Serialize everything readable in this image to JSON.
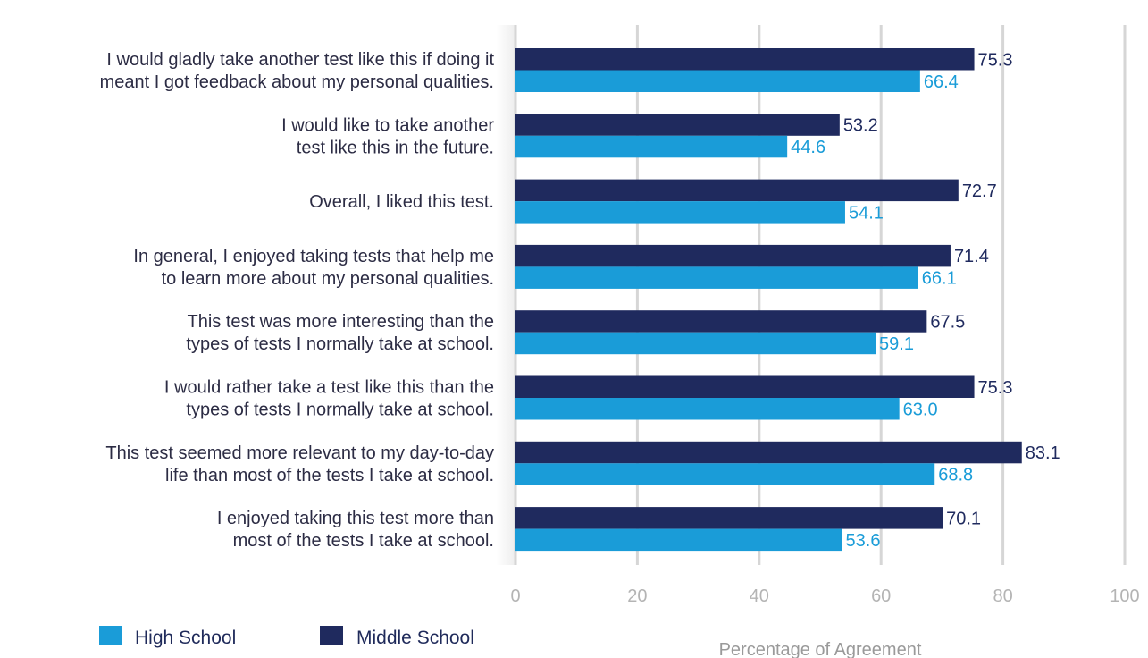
{
  "chart_data": {
    "type": "bar",
    "orientation": "horizontal",
    "title": "",
    "xlabel": "Percentage of Agreement",
    "ylabel": "",
    "xlim": [
      0,
      100
    ],
    "xticks": [
      0,
      20,
      40,
      60,
      80,
      100
    ],
    "grid": true,
    "legend_position": "bottom-left",
    "categories": [
      [
        "I would gladly take another test like this if doing it",
        "meant I got feedback about my personal qualities."
      ],
      [
        "I would like to take another",
        "test like this in the future."
      ],
      [
        "Overall, I liked this test."
      ],
      [
        "In general, I enjoyed taking tests that help me",
        "to learn more about my personal qualities."
      ],
      [
        "This test was more interesting than the",
        "types of tests I normally take at school."
      ],
      [
        "I would rather take a test like this than the",
        "types of tests I normally take at school."
      ],
      [
        "This test seemed more relevant to my day-to-day",
        "life than most of the tests I take at school."
      ],
      [
        "I enjoyed taking this test more than",
        "most of the tests I take at school."
      ]
    ],
    "series": [
      {
        "name": "Middle School",
        "color": "#1f2a5e",
        "label_color": "#1f2a5e",
        "values": [
          75.3,
          53.2,
          72.7,
          71.4,
          67.5,
          75.3,
          83.1,
          70.1
        ],
        "labels": [
          "75.3",
          "53.2",
          "72.7",
          "71.4",
          "67.5",
          "75.3",
          "83.1",
          "70.1"
        ]
      },
      {
        "name": "High School",
        "color": "#1a9cd8",
        "label_color": "#1a9cd8",
        "values": [
          66.4,
          44.6,
          54.1,
          66.1,
          59.1,
          63.0,
          68.8,
          53.6
        ],
        "labels": [
          "66.4",
          "44.6",
          "54.1",
          "66.1",
          "59.1",
          "63.0",
          "68.8",
          "53.6"
        ]
      }
    ],
    "legend": [
      {
        "name": "High School",
        "color": "#1a9cd8"
      },
      {
        "name": "Middle School",
        "color": "#1f2a5e"
      }
    ]
  }
}
